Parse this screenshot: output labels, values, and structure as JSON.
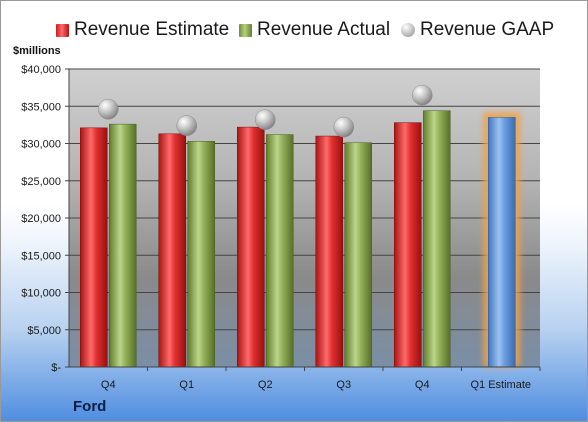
{
  "chart_data": {
    "type": "bar",
    "company": "Ford",
    "ylabel": "$millions",
    "categories": [
      "Q4",
      "Q1",
      "Q2",
      "Q3",
      "Q4",
      "Q1 Estimate"
    ],
    "series": [
      {
        "name": "Revenue Estimate",
        "kind": "bar",
        "color": "#d42424",
        "values": [
          32100,
          31300,
          32200,
          31000,
          32800,
          null
        ]
      },
      {
        "name": "Revenue Actual",
        "kind": "bar",
        "color": "#8faa55",
        "values": [
          32600,
          30300,
          31200,
          30100,
          34400,
          null
        ]
      },
      {
        "name": "Revenue GAAP",
        "kind": "marker",
        "color": "#b8b8b8",
        "values": [
          34600,
          32400,
          33200,
          32200,
          36500,
          null
        ]
      },
      {
        "name": "Q1 Estimate",
        "kind": "bar",
        "color": "#5b92d6",
        "values": [
          null,
          null,
          null,
          null,
          null,
          33500
        ]
      }
    ],
    "ylim": [
      0,
      40000
    ],
    "yticks": [
      0,
      5000,
      10000,
      15000,
      20000,
      25000,
      30000,
      35000,
      40000
    ],
    "ytick_labels": [
      "$-",
      "$5,000",
      "$10,000",
      "$15,000",
      "$20,000",
      "$25,000",
      "$30,000",
      "$35,000",
      "$40,000"
    ],
    "grid": true,
    "legend_position": "top"
  }
}
